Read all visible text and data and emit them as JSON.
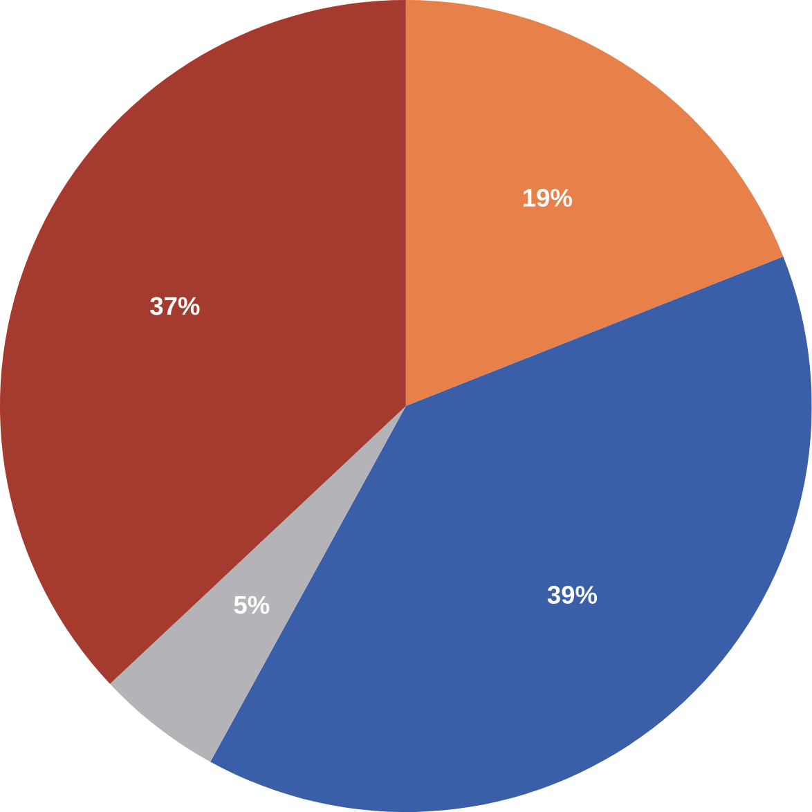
{
  "chart_data": {
    "type": "pie",
    "categories": [
      null,
      null,
      null,
      null
    ],
    "values": [
      19,
      39,
      5,
      37
    ],
    "colors": [
      "#e8804a",
      "#3a5fa8",
      "#b4b4b8",
      "#a53b2e"
    ],
    "value_labels": [
      "19%",
      "39%",
      "5%",
      "37%"
    ]
  }
}
